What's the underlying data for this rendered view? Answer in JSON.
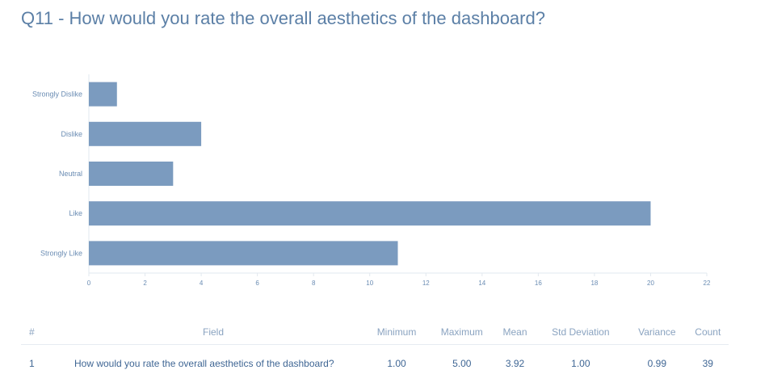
{
  "title": "Q11 - How would you rate the overall aesthetics of the dashboard?",
  "colors": {
    "bar": "#7b9bbf",
    "axis": "#e2e8ef",
    "title": "#5b7fa6",
    "text": "#6a8cb3"
  },
  "chart_data": {
    "type": "bar",
    "orientation": "horizontal",
    "categories": [
      "Strongly Dislike",
      "Dislike",
      "Neutral",
      "Like",
      "Strongly Like"
    ],
    "values": [
      1,
      4,
      3,
      20,
      11
    ],
    "xticks": [
      0,
      2,
      4,
      6,
      8,
      10,
      12,
      14,
      16,
      18,
      20,
      22
    ],
    "xlim": [
      0,
      22
    ],
    "title": "Q11 - How would you rate the overall aesthetics of the dashboard?",
    "xlabel": "",
    "ylabel": "",
    "grid": false
  },
  "stats_table": {
    "headers": [
      "#",
      "Field",
      "Minimum",
      "Maximum",
      "Mean",
      "Std Deviation",
      "Variance",
      "Count"
    ],
    "rows": [
      [
        "1",
        "How would you rate the overall aesthetics of the dashboard?",
        "1.00",
        "5.00",
        "3.92",
        "1.00",
        "0.99",
        "39"
      ]
    ]
  }
}
